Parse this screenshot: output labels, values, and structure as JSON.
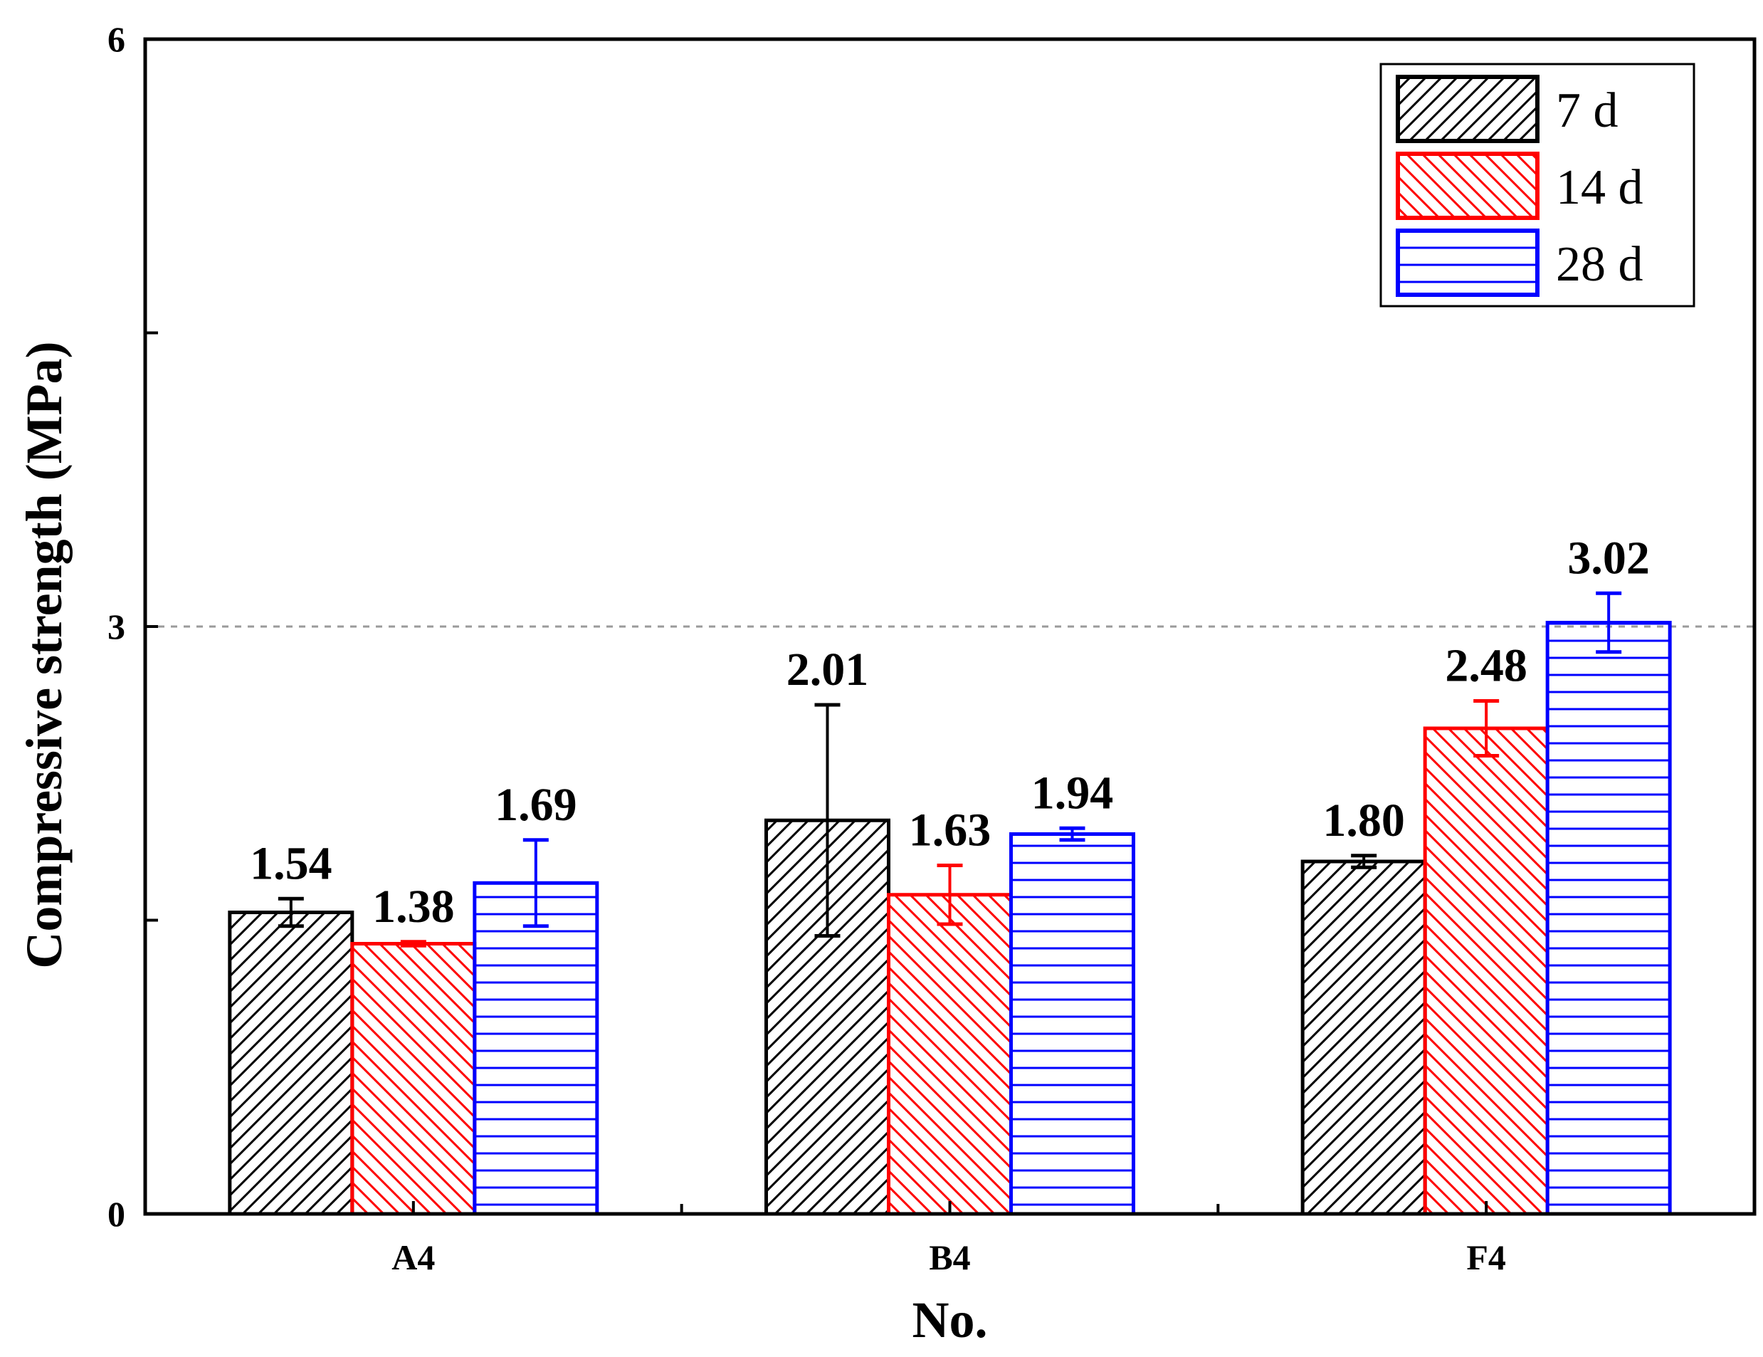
{
  "chart_data": {
    "type": "bar",
    "title": "",
    "xlabel": "No.",
    "ylabel": "Compressive strength (MPa)",
    "ylim": [
      0,
      6
    ],
    "yticks": [
      0,
      3,
      6
    ],
    "y_tick_labels": [
      "0",
      "3",
      "6"
    ],
    "reference_line": 3,
    "categories": [
      "A4",
      "B4",
      "F4"
    ],
    "series": [
      {
        "name": "7 d",
        "color": "#000000",
        "pattern": "diagonal-up",
        "values": [
          1.54,
          2.01,
          1.8
        ],
        "errors": [
          0.07,
          0.59,
          0.03
        ],
        "labels": [
          "1.54",
          "2.01",
          "1.80"
        ]
      },
      {
        "name": "14 d",
        "color": "#ff0000",
        "pattern": "diagonal-down",
        "values": [
          1.38,
          1.63,
          2.48
        ],
        "errors": [
          0.01,
          0.15,
          0.14
        ],
        "labels": [
          "1.38",
          "1.63",
          "2.48"
        ]
      },
      {
        "name": "28 d",
        "color": "#0000ff",
        "pattern": "horizontal",
        "values": [
          1.69,
          1.94,
          3.02
        ],
        "errors": [
          0.22,
          0.03,
          0.15
        ],
        "labels": [
          "1.69",
          "1.94",
          "3.02"
        ]
      }
    ],
    "legend": {
      "position": "top-right"
    }
  }
}
